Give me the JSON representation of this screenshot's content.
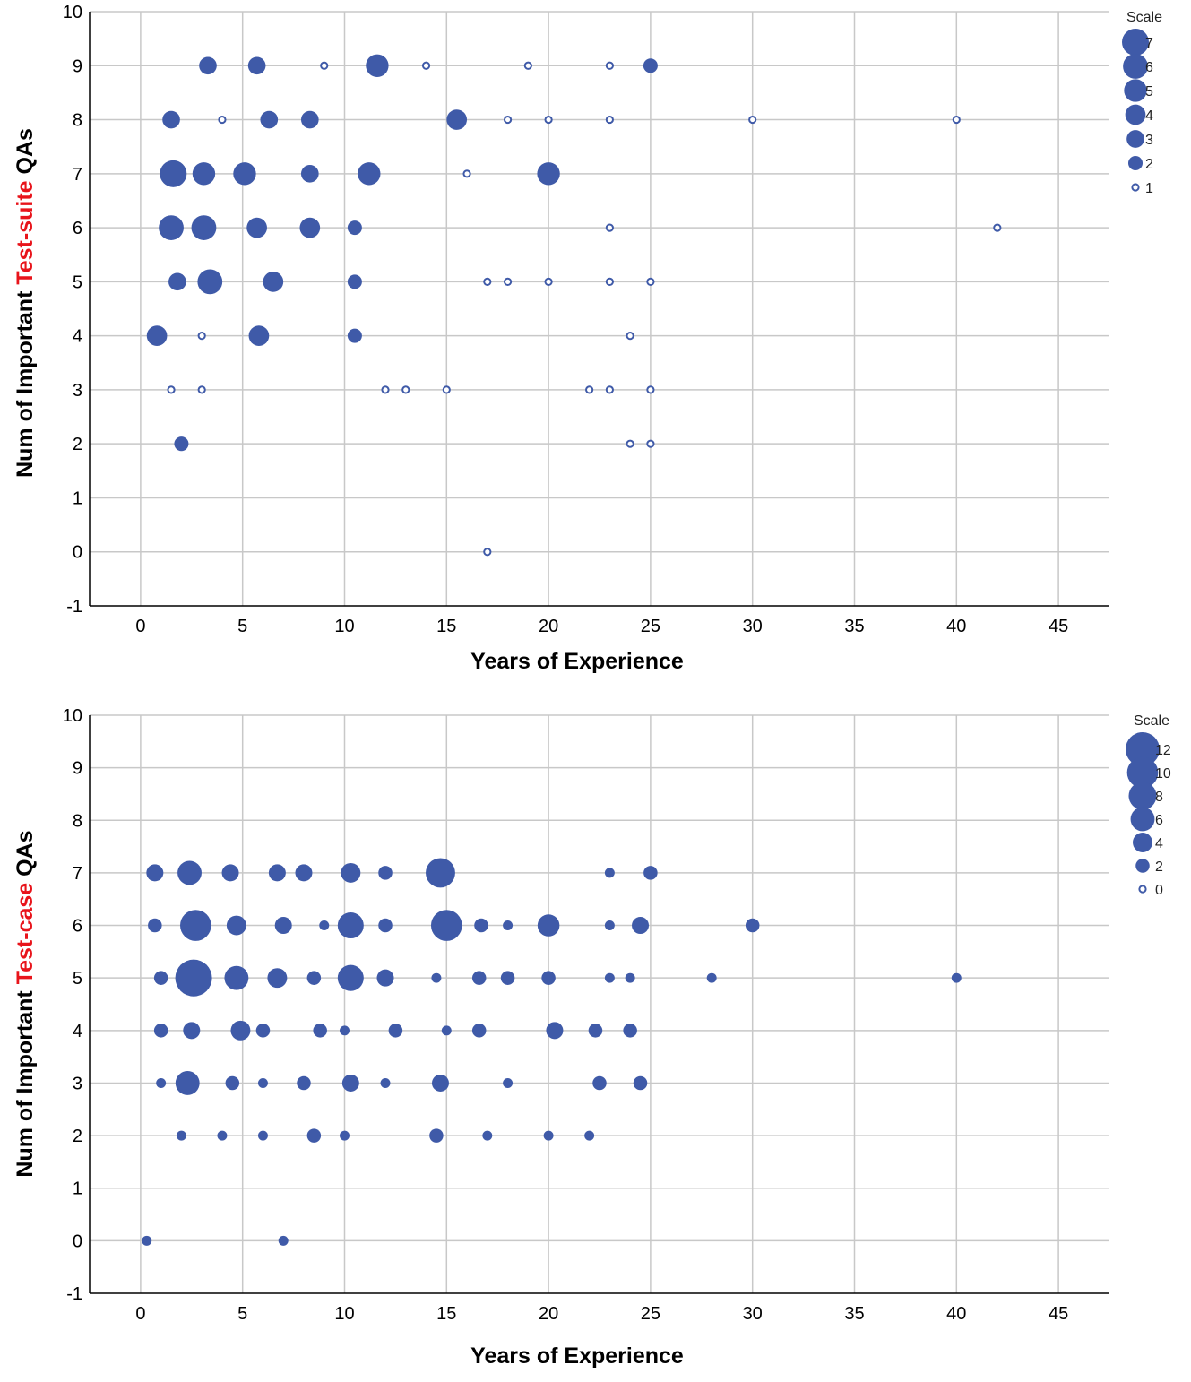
{
  "colors": {
    "point": "#3f5aa8",
    "grid": "#c8c8c8",
    "axis": "#000000",
    "highlight": "#e8141b"
  },
  "chart_data": [
    {
      "type": "scatter",
      "xlabel": "Years of Experience",
      "ylabel_parts": [
        "Num of Important ",
        "Test-suite",
        " QAs"
      ],
      "xlim": [
        -2.5,
        47.5
      ],
      "ylim": [
        -1,
        10
      ],
      "x_ticks": [
        0,
        5,
        10,
        15,
        20,
        25,
        30,
        35,
        40,
        45
      ],
      "y_ticks": [
        -1,
        0,
        1,
        2,
        3,
        4,
        5,
        6,
        7,
        8,
        9,
        10
      ],
      "legend": {
        "title": "Scale",
        "position": "top-right",
        "values": [
          7,
          6,
          5,
          4,
          3,
          2,
          1
        ]
      },
      "size_max": 7,
      "points": [
        {
          "x": 3.3,
          "y": 9,
          "size": 3
        },
        {
          "x": 5.7,
          "y": 9,
          "size": 3
        },
        {
          "x": 9,
          "y": 9,
          "size": 1
        },
        {
          "x": 11.6,
          "y": 9,
          "size": 5
        },
        {
          "x": 14,
          "y": 9,
          "size": 1
        },
        {
          "x": 19,
          "y": 9,
          "size": 1
        },
        {
          "x": 23,
          "y": 9,
          "size": 1
        },
        {
          "x": 25,
          "y": 9,
          "size": 2
        },
        {
          "x": 1.5,
          "y": 8,
          "size": 3
        },
        {
          "x": 4,
          "y": 8,
          "size": 1
        },
        {
          "x": 6.3,
          "y": 8,
          "size": 3
        },
        {
          "x": 8.3,
          "y": 8,
          "size": 3
        },
        {
          "x": 15.5,
          "y": 8,
          "size": 4
        },
        {
          "x": 18,
          "y": 8,
          "size": 1
        },
        {
          "x": 20,
          "y": 8,
          "size": 1
        },
        {
          "x": 23,
          "y": 8,
          "size": 1
        },
        {
          "x": 30,
          "y": 8,
          "size": 1
        },
        {
          "x": 40,
          "y": 8,
          "size": 1
        },
        {
          "x": 1.6,
          "y": 7,
          "size": 7
        },
        {
          "x": 3.1,
          "y": 7,
          "size": 5
        },
        {
          "x": 5.1,
          "y": 7,
          "size": 5
        },
        {
          "x": 8.3,
          "y": 7,
          "size": 3
        },
        {
          "x": 11.2,
          "y": 7,
          "size": 5
        },
        {
          "x": 16,
          "y": 7,
          "size": 1
        },
        {
          "x": 20,
          "y": 7,
          "size": 5
        },
        {
          "x": 1.5,
          "y": 6,
          "size": 6
        },
        {
          "x": 3.1,
          "y": 6,
          "size": 6
        },
        {
          "x": 5.7,
          "y": 6,
          "size": 4
        },
        {
          "x": 8.3,
          "y": 6,
          "size": 4
        },
        {
          "x": 10.5,
          "y": 6,
          "size": 2
        },
        {
          "x": 23,
          "y": 6,
          "size": 1
        },
        {
          "x": 42,
          "y": 6,
          "size": 1
        },
        {
          "x": 1.8,
          "y": 5,
          "size": 3
        },
        {
          "x": 3.4,
          "y": 5,
          "size": 6
        },
        {
          "x": 6.5,
          "y": 5,
          "size": 4
        },
        {
          "x": 10.5,
          "y": 5,
          "size": 2
        },
        {
          "x": 17,
          "y": 5,
          "size": 1
        },
        {
          "x": 18,
          "y": 5,
          "size": 1
        },
        {
          "x": 20,
          "y": 5,
          "size": 1
        },
        {
          "x": 23,
          "y": 5,
          "size": 1
        },
        {
          "x": 25,
          "y": 5,
          "size": 1
        },
        {
          "x": 0.8,
          "y": 4,
          "size": 4
        },
        {
          "x": 3,
          "y": 4,
          "size": 1
        },
        {
          "x": 5.8,
          "y": 4,
          "size": 4
        },
        {
          "x": 10.5,
          "y": 4,
          "size": 2
        },
        {
          "x": 24,
          "y": 4,
          "size": 1
        },
        {
          "x": 1.5,
          "y": 3,
          "size": 1
        },
        {
          "x": 3,
          "y": 3,
          "size": 1
        },
        {
          "x": 12,
          "y": 3,
          "size": 1
        },
        {
          "x": 13,
          "y": 3,
          "size": 1
        },
        {
          "x": 15,
          "y": 3,
          "size": 1
        },
        {
          "x": 22,
          "y": 3,
          "size": 1
        },
        {
          "x": 23,
          "y": 3,
          "size": 1
        },
        {
          "x": 25,
          "y": 3,
          "size": 1
        },
        {
          "x": 2,
          "y": 2,
          "size": 2
        },
        {
          "x": 24,
          "y": 2,
          "size": 1
        },
        {
          "x": 25,
          "y": 2,
          "size": 1
        },
        {
          "x": 17,
          "y": 0,
          "size": 1
        }
      ]
    },
    {
      "type": "scatter",
      "xlabel": "Years of Experience",
      "ylabel_parts": [
        "Num of Important ",
        "Test-case",
        " QAs"
      ],
      "xlim": [
        -2.5,
        47.5
      ],
      "ylim": [
        -1,
        10
      ],
      "x_ticks": [
        0,
        5,
        10,
        15,
        20,
        25,
        30,
        35,
        40,
        45
      ],
      "y_ticks": [
        -1,
        0,
        1,
        2,
        3,
        4,
        5,
        6,
        7,
        8,
        9,
        10
      ],
      "legend": {
        "title": "Scale",
        "position": "top-right",
        "values": [
          12,
          10,
          8,
          6,
          4,
          2,
          0
        ]
      },
      "size_max": 12,
      "points": [
        {
          "x": 0.7,
          "y": 7,
          "size": 3
        },
        {
          "x": 2.4,
          "y": 7,
          "size": 6
        },
        {
          "x": 4.4,
          "y": 7,
          "size": 3
        },
        {
          "x": 6.7,
          "y": 7,
          "size": 3
        },
        {
          "x": 8,
          "y": 7,
          "size": 3
        },
        {
          "x": 10.3,
          "y": 7,
          "size": 4
        },
        {
          "x": 12,
          "y": 7,
          "size": 2
        },
        {
          "x": 14.7,
          "y": 7,
          "size": 9
        },
        {
          "x": 23,
          "y": 7,
          "size": 1
        },
        {
          "x": 25,
          "y": 7,
          "size": 2
        },
        {
          "x": 0.7,
          "y": 6,
          "size": 2
        },
        {
          "x": 2.7,
          "y": 6,
          "size": 10
        },
        {
          "x": 4.7,
          "y": 6,
          "size": 4
        },
        {
          "x": 7,
          "y": 6,
          "size": 3
        },
        {
          "x": 9,
          "y": 6,
          "size": 1
        },
        {
          "x": 10.3,
          "y": 6,
          "size": 7
        },
        {
          "x": 12,
          "y": 6,
          "size": 2
        },
        {
          "x": 15,
          "y": 6,
          "size": 10
        },
        {
          "x": 16.7,
          "y": 6,
          "size": 2
        },
        {
          "x": 18,
          "y": 6,
          "size": 1
        },
        {
          "x": 20,
          "y": 6,
          "size": 5
        },
        {
          "x": 23,
          "y": 6,
          "size": 1
        },
        {
          "x": 24.5,
          "y": 6,
          "size": 3
        },
        {
          "x": 30,
          "y": 6,
          "size": 2
        },
        {
          "x": 1,
          "y": 5,
          "size": 2
        },
        {
          "x": 2.6,
          "y": 5,
          "size": 14
        },
        {
          "x": 4.7,
          "y": 5,
          "size": 6
        },
        {
          "x": 6.7,
          "y": 5,
          "size": 4
        },
        {
          "x": 8.5,
          "y": 5,
          "size": 2
        },
        {
          "x": 10.3,
          "y": 5,
          "size": 7
        },
        {
          "x": 12,
          "y": 5,
          "size": 3
        },
        {
          "x": 14.5,
          "y": 5,
          "size": 1
        },
        {
          "x": 16.6,
          "y": 5,
          "size": 2
        },
        {
          "x": 18,
          "y": 5,
          "size": 2
        },
        {
          "x": 20,
          "y": 5,
          "size": 2
        },
        {
          "x": 23,
          "y": 5,
          "size": 1
        },
        {
          "x": 24,
          "y": 5,
          "size": 1
        },
        {
          "x": 28,
          "y": 5,
          "size": 1
        },
        {
          "x": 40,
          "y": 5,
          "size": 1
        },
        {
          "x": 1,
          "y": 4,
          "size": 2
        },
        {
          "x": 2.5,
          "y": 4,
          "size": 3
        },
        {
          "x": 4.9,
          "y": 4,
          "size": 4
        },
        {
          "x": 6,
          "y": 4,
          "size": 2
        },
        {
          "x": 8.8,
          "y": 4,
          "size": 2
        },
        {
          "x": 10,
          "y": 4,
          "size": 1
        },
        {
          "x": 12.5,
          "y": 4,
          "size": 2
        },
        {
          "x": 15,
          "y": 4,
          "size": 1
        },
        {
          "x": 16.6,
          "y": 4,
          "size": 2
        },
        {
          "x": 20.3,
          "y": 4,
          "size": 3
        },
        {
          "x": 22.3,
          "y": 4,
          "size": 2
        },
        {
          "x": 24,
          "y": 4,
          "size": 2
        },
        {
          "x": 1,
          "y": 3,
          "size": 1
        },
        {
          "x": 2.3,
          "y": 3,
          "size": 6
        },
        {
          "x": 4.5,
          "y": 3,
          "size": 2
        },
        {
          "x": 6,
          "y": 3,
          "size": 1
        },
        {
          "x": 8,
          "y": 3,
          "size": 2
        },
        {
          "x": 10.3,
          "y": 3,
          "size": 3
        },
        {
          "x": 12,
          "y": 3,
          "size": 1
        },
        {
          "x": 14.7,
          "y": 3,
          "size": 3
        },
        {
          "x": 18,
          "y": 3,
          "size": 1
        },
        {
          "x": 22.5,
          "y": 3,
          "size": 2
        },
        {
          "x": 24.5,
          "y": 3,
          "size": 2
        },
        {
          "x": 2,
          "y": 2,
          "size": 1
        },
        {
          "x": 4,
          "y": 2,
          "size": 1
        },
        {
          "x": 6,
          "y": 2,
          "size": 1
        },
        {
          "x": 8.5,
          "y": 2,
          "size": 2
        },
        {
          "x": 10,
          "y": 2,
          "size": 1
        },
        {
          "x": 14.5,
          "y": 2,
          "size": 2
        },
        {
          "x": 17,
          "y": 2,
          "size": 1
        },
        {
          "x": 20,
          "y": 2,
          "size": 1
        },
        {
          "x": 22,
          "y": 2,
          "size": 1
        },
        {
          "x": 0.3,
          "y": 0,
          "size": 1
        },
        {
          "x": 7,
          "y": 0,
          "size": 1
        }
      ]
    }
  ]
}
